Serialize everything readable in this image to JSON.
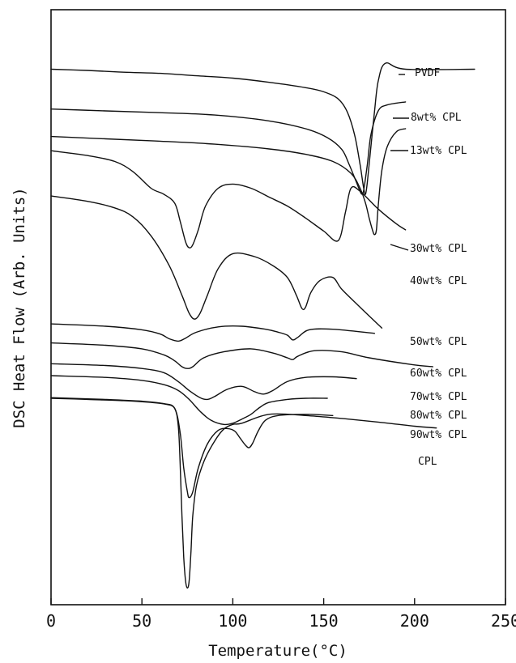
{
  "chart_data": {
    "type": "line",
    "title": "",
    "xlabel": "Temperature(°C)",
    "ylabel": "DSC  Heat  Flow (Arb. Units)",
    "xlim": [
      0,
      250
    ],
    "ylim": [
      0,
      1
    ],
    "xticks": [
      0,
      50,
      100,
      150,
      200,
      250
    ],
    "xtick_labels": [
      "0",
      "50",
      "100",
      "150",
      "200",
      "250"
    ],
    "y_axis_ticks": "none",
    "grid": false,
    "legend": "none (series labelled directly at right end of curves)",
    "series": [
      {
        "name": "PVDF",
        "points": [
          [
            0,
            0.9
          ],
          [
            20,
            0.898
          ],
          [
            40,
            0.895
          ],
          [
            60,
            0.893
          ],
          [
            80,
            0.889
          ],
          [
            100,
            0.885
          ],
          [
            120,
            0.878
          ],
          [
            140,
            0.869
          ],
          [
            150,
            0.862
          ],
          [
            158,
            0.85
          ],
          [
            163,
            0.828
          ],
          [
            167,
            0.79
          ],
          [
            170,
            0.74
          ],
          [
            172,
            0.7
          ],
          [
            173,
            0.69
          ],
          [
            174,
            0.71
          ],
          [
            176,
            0.77
          ],
          [
            178,
            0.83
          ],
          [
            180,
            0.88
          ],
          [
            184,
            0.91
          ],
          [
            195,
            0.9
          ],
          [
            233,
            0.9
          ]
        ]
      },
      {
        "name": "8wt% CPL",
        "points": [
          [
            0,
            0.833
          ],
          [
            30,
            0.83
          ],
          [
            60,
            0.827
          ],
          [
            90,
            0.823
          ],
          [
            120,
            0.813
          ],
          [
            140,
            0.8
          ],
          [
            152,
            0.785
          ],
          [
            160,
            0.765
          ],
          [
            164,
            0.74
          ],
          [
            168,
            0.71
          ],
          [
            170,
            0.695
          ],
          [
            171,
            0.69
          ],
          [
            172,
            0.697
          ],
          [
            174,
            0.74
          ],
          [
            176,
            0.79
          ],
          [
            180,
            0.83
          ],
          [
            185,
            0.84
          ],
          [
            195,
            0.845
          ]
        ]
      },
      {
        "name": "13wt% CPL",
        "points": [
          [
            0,
            0.787
          ],
          [
            30,
            0.783
          ],
          [
            60,
            0.779
          ],
          [
            90,
            0.774
          ],
          [
            120,
            0.766
          ],
          [
            140,
            0.757
          ],
          [
            155,
            0.745
          ],
          [
            165,
            0.725
          ],
          [
            170,
            0.7
          ],
          [
            173,
            0.675
          ],
          [
            175,
            0.65
          ],
          [
            177,
            0.628
          ],
          [
            178,
            0.622
          ],
          [
            179,
            0.63
          ],
          [
            180,
            0.67
          ],
          [
            182,
            0.73
          ],
          [
            185,
            0.77
          ],
          [
            190,
            0.795
          ],
          [
            195,
            0.8
          ]
        ]
      },
      {
        "name": "30wt% CPL",
        "points": [
          [
            0,
            0.763
          ],
          [
            20,
            0.755
          ],
          [
            35,
            0.745
          ],
          [
            45,
            0.728
          ],
          [
            55,
            0.7
          ],
          [
            62,
            0.69
          ],
          [
            68,
            0.675
          ],
          [
            71,
            0.645
          ],
          [
            74,
            0.61
          ],
          [
            76,
            0.6
          ],
          [
            78,
            0.605
          ],
          [
            81,
            0.63
          ],
          [
            85,
            0.67
          ],
          [
            92,
            0.7
          ],
          [
            100,
            0.707
          ],
          [
            110,
            0.7
          ],
          [
            120,
            0.685
          ],
          [
            130,
            0.67
          ],
          [
            140,
            0.65
          ],
          [
            150,
            0.628
          ],
          [
            158,
            0.612
          ],
          [
            162,
            0.66
          ],
          [
            165,
            0.7
          ],
          [
            170,
            0.695
          ],
          [
            180,
            0.665
          ],
          [
            190,
            0.64
          ],
          [
            195,
            0.63
          ]
        ]
      },
      {
        "name": "40wt% CPL",
        "points": [
          [
            0,
            0.687
          ],
          [
            20,
            0.678
          ],
          [
            35,
            0.667
          ],
          [
            45,
            0.652
          ],
          [
            55,
            0.62
          ],
          [
            65,
            0.57
          ],
          [
            72,
            0.52
          ],
          [
            76,
            0.49
          ],
          [
            79,
            0.48
          ],
          [
            82,
            0.49
          ],
          [
            86,
            0.52
          ],
          [
            92,
            0.565
          ],
          [
            100,
            0.59
          ],
          [
            112,
            0.585
          ],
          [
            122,
            0.57
          ],
          [
            130,
            0.55
          ],
          [
            135,
            0.52
          ],
          [
            138,
            0.498
          ],
          [
            140,
            0.5
          ],
          [
            143,
            0.525
          ],
          [
            148,
            0.545
          ],
          [
            155,
            0.55
          ],
          [
            160,
            0.53
          ],
          [
            170,
            0.5
          ],
          [
            182,
            0.465
          ]
        ]
      },
      {
        "name": "50wt% CPL",
        "points": [
          [
            0,
            0.472
          ],
          [
            30,
            0.468
          ],
          [
            50,
            0.462
          ],
          [
            60,
            0.455
          ],
          [
            65,
            0.447
          ],
          [
            70,
            0.443
          ],
          [
            74,
            0.448
          ],
          [
            80,
            0.458
          ],
          [
            92,
            0.467
          ],
          [
            105,
            0.468
          ],
          [
            118,
            0.463
          ],
          [
            125,
            0.458
          ],
          [
            130,
            0.453
          ],
          [
            133,
            0.445
          ],
          [
            136,
            0.45
          ],
          [
            142,
            0.462
          ],
          [
            155,
            0.463
          ],
          [
            178,
            0.456
          ]
        ]
      },
      {
        "name": "60wt% CPL",
        "points": [
          [
            0,
            0.44
          ],
          [
            30,
            0.436
          ],
          [
            50,
            0.43
          ],
          [
            62,
            0.42
          ],
          [
            68,
            0.41
          ],
          [
            72,
            0.4
          ],
          [
            75,
            0.397
          ],
          [
            78,
            0.4
          ],
          [
            84,
            0.415
          ],
          [
            95,
            0.425
          ],
          [
            110,
            0.43
          ],
          [
            122,
            0.423
          ],
          [
            130,
            0.415
          ],
          [
            133,
            0.412
          ],
          [
            136,
            0.418
          ],
          [
            145,
            0.427
          ],
          [
            160,
            0.425
          ],
          [
            175,
            0.415
          ],
          [
            200,
            0.403
          ],
          [
            210,
            0.4
          ]
        ]
      },
      {
        "name": "70wt% CPL",
        "points": [
          [
            0,
            0.405
          ],
          [
            30,
            0.402
          ],
          [
            50,
            0.397
          ],
          [
            62,
            0.39
          ],
          [
            70,
            0.375
          ],
          [
            76,
            0.36
          ],
          [
            82,
            0.348
          ],
          [
            86,
            0.345
          ],
          [
            90,
            0.35
          ],
          [
            97,
            0.362
          ],
          [
            105,
            0.367
          ],
          [
            112,
            0.358
          ],
          [
            117,
            0.354
          ],
          [
            122,
            0.36
          ],
          [
            130,
            0.375
          ],
          [
            140,
            0.382
          ],
          [
            155,
            0.383
          ],
          [
            168,
            0.38
          ]
        ]
      },
      {
        "name": "80wt% CPL",
        "points": [
          [
            0,
            0.385
          ],
          [
            30,
            0.382
          ],
          [
            50,
            0.377
          ],
          [
            62,
            0.37
          ],
          [
            70,
            0.36
          ],
          [
            76,
            0.345
          ],
          [
            82,
            0.325
          ],
          [
            88,
            0.31
          ],
          [
            95,
            0.303
          ],
          [
            100,
            0.305
          ],
          [
            105,
            0.312
          ],
          [
            110,
            0.32
          ],
          [
            115,
            0.332
          ],
          [
            120,
            0.34
          ],
          [
            130,
            0.345
          ],
          [
            140,
            0.347
          ],
          [
            152,
            0.347
          ]
        ]
      },
      {
        "name": "90wt% CPL",
        "points": [
          [
            0,
            0.348
          ],
          [
            30,
            0.345
          ],
          [
            50,
            0.342
          ],
          [
            62,
            0.338
          ],
          [
            68,
            0.33
          ],
          [
            71,
            0.29
          ],
          [
            73,
            0.23
          ],
          [
            75,
            0.19
          ],
          [
            76,
            0.18
          ],
          [
            78,
            0.19
          ],
          [
            81,
            0.23
          ],
          [
            86,
            0.27
          ],
          [
            92,
            0.293
          ],
          [
            97,
            0.296
          ],
          [
            101,
            0.292
          ],
          [
            104,
            0.28
          ],
          [
            107,
            0.268
          ],
          [
            109,
            0.264
          ],
          [
            111,
            0.272
          ],
          [
            114,
            0.292
          ],
          [
            118,
            0.31
          ],
          [
            125,
            0.318
          ],
          [
            140,
            0.32
          ],
          [
            155,
            0.318
          ]
        ]
      },
      {
        "name": "CPL",
        "points": [
          [
            0,
            0.347
          ],
          [
            20,
            0.345
          ],
          [
            40,
            0.343
          ],
          [
            55,
            0.34
          ],
          [
            63,
            0.337
          ],
          [
            68,
            0.33
          ],
          [
            70,
            0.3
          ],
          [
            71,
            0.24
          ],
          [
            72,
            0.15
          ],
          [
            73,
            0.08
          ],
          [
            74,
            0.04
          ],
          [
            75,
            0.028
          ],
          [
            76,
            0.04
          ],
          [
            77,
            0.09
          ],
          [
            78,
            0.15
          ],
          [
            80,
            0.2
          ],
          [
            84,
            0.24
          ],
          [
            90,
            0.275
          ],
          [
            95,
            0.295
          ],
          [
            100,
            0.303
          ],
          [
            105,
            0.305
          ],
          [
            120,
            0.32
          ],
          [
            140,
            0.318
          ],
          [
            160,
            0.313
          ],
          [
            180,
            0.307
          ],
          [
            200,
            0.3
          ],
          [
            212,
            0.297
          ]
        ]
      }
    ]
  }
}
